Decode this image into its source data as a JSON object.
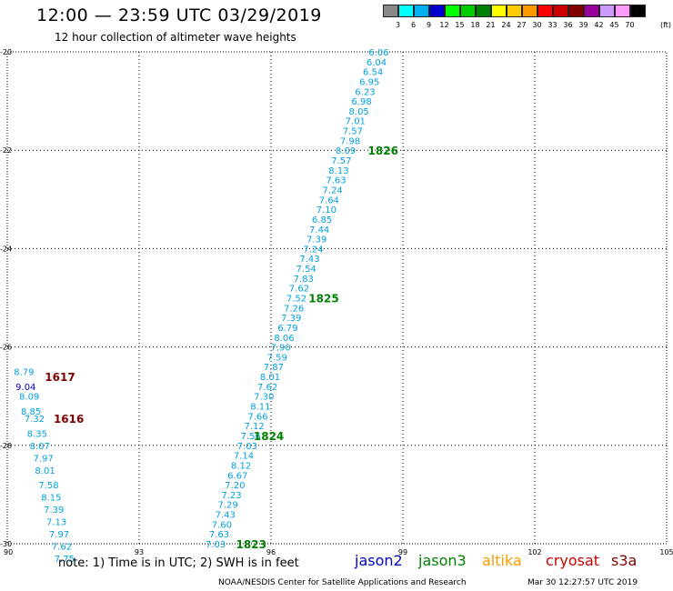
{
  "header": {
    "title": "12:00 — 23:59 UTC 03/29/2019",
    "subtitle": "12 hour collection of altimeter wave heights"
  },
  "scale": {
    "unit": "(ft)",
    "levels": [
      {
        "label": "3",
        "color": "#888888"
      },
      {
        "label": "6",
        "color": "#00ffff"
      },
      {
        "label": "9",
        "color": "#00b0f0"
      },
      {
        "label": "12",
        "color": "#0000cc"
      },
      {
        "label": "15",
        "color": "#00ff00"
      },
      {
        "label": "18",
        "color": "#00cc00"
      },
      {
        "label": "21",
        "color": "#008000"
      },
      {
        "label": "24",
        "color": "#ffff00"
      },
      {
        "label": "27",
        "color": "#ffcc00"
      },
      {
        "label": "30",
        "color": "#ff9900"
      },
      {
        "label": "33",
        "color": "#ff0000"
      },
      {
        "label": "36",
        "color": "#cc0000"
      },
      {
        "label": "39",
        "color": "#800000"
      },
      {
        "label": "42",
        "color": "#990099"
      },
      {
        "label": "45",
        "color": "#cc99ff"
      },
      {
        "label": "70",
        "color": "#ff99ff"
      },
      {
        "label": "",
        "color": "#000000"
      }
    ]
  },
  "map": {
    "lon_ticks": [
      "90",
      "93",
      "96",
      "99",
      "102",
      "105"
    ],
    "lat_ticks": [
      "-20",
      "-22",
      "-24",
      "-26",
      "-28",
      "-30"
    ],
    "track_a": [
      {
        "lat": -20.0,
        "lon": 98.45,
        "v": "6.06"
      },
      {
        "lat": -20.2,
        "lon": 98.4,
        "v": "6.04"
      },
      {
        "lat": -20.4,
        "lon": 98.32,
        "v": "6.54"
      },
      {
        "lat": -20.6,
        "lon": 98.24,
        "v": "6.95"
      },
      {
        "lat": -20.8,
        "lon": 98.14,
        "v": "6.23"
      },
      {
        "lat": -21.0,
        "lon": 98.06,
        "v": "6.98"
      },
      {
        "lat": -21.2,
        "lon": 98.0,
        "v": "8.05"
      },
      {
        "lat": -21.4,
        "lon": 97.92,
        "v": "7.01"
      },
      {
        "lat": -21.6,
        "lon": 97.86,
        "v": "7.57"
      },
      {
        "lat": -21.8,
        "lon": 97.8,
        "v": "7.98"
      },
      {
        "lat": -22.0,
        "lon": 97.7,
        "v": "8.09"
      },
      {
        "lat": -22.2,
        "lon": 97.6,
        "v": "7.57"
      },
      {
        "lat": -22.4,
        "lon": 97.54,
        "v": "8.13"
      },
      {
        "lat": -22.6,
        "lon": 97.48,
        "v": "7.63"
      },
      {
        "lat": -22.8,
        "lon": 97.4,
        "v": "7.24"
      },
      {
        "lat": -23.0,
        "lon": 97.32,
        "v": "7.64"
      },
      {
        "lat": -23.2,
        "lon": 97.26,
        "v": "7.10"
      },
      {
        "lat": -23.4,
        "lon": 97.16,
        "v": "6.85"
      },
      {
        "lat": -23.6,
        "lon": 97.1,
        "v": "7.44"
      },
      {
        "lat": -23.8,
        "lon": 97.04,
        "v": "7.39"
      },
      {
        "lat": -24.0,
        "lon": 96.96,
        "v": "7.24"
      },
      {
        "lat": -24.2,
        "lon": 96.88,
        "v": "7.43"
      },
      {
        "lat": -24.4,
        "lon": 96.8,
        "v": "7.54"
      },
      {
        "lat": -24.6,
        "lon": 96.74,
        "v": "7.83"
      },
      {
        "lat": -24.8,
        "lon": 96.64,
        "v": "7.62"
      },
      {
        "lat": -25.0,
        "lon": 96.58,
        "v": "7.52"
      },
      {
        "lat": -25.2,
        "lon": 96.52,
        "v": "7.26"
      },
      {
        "lat": -25.4,
        "lon": 96.46,
        "v": "7.39"
      },
      {
        "lat": -25.6,
        "lon": 96.38,
        "v": "6.79"
      },
      {
        "lat": -25.8,
        "lon": 96.3,
        "v": "8.06"
      },
      {
        "lat": -26.0,
        "lon": 96.22,
        "v": "7.90"
      },
      {
        "lat": -26.2,
        "lon": 96.14,
        "v": "7.59"
      },
      {
        "lat": -26.4,
        "lon": 96.06,
        "v": "7.87"
      },
      {
        "lat": -26.6,
        "lon": 95.98,
        "v": "8.01"
      },
      {
        "lat": -26.8,
        "lon": 95.92,
        "v": "7.62"
      },
      {
        "lat": -27.0,
        "lon": 95.84,
        "v": "7.30"
      },
      {
        "lat": -27.2,
        "lon": 95.76,
        "v": "8.11"
      },
      {
        "lat": -27.4,
        "lon": 95.7,
        "v": "7.66"
      },
      {
        "lat": -27.6,
        "lon": 95.62,
        "v": "7.12"
      },
      {
        "lat": -27.8,
        "lon": 95.54,
        "v": "7.56"
      },
      {
        "lat": -28.0,
        "lon": 95.46,
        "v": "7.03"
      },
      {
        "lat": -28.2,
        "lon": 95.38,
        "v": "7.14"
      },
      {
        "lat": -28.4,
        "lon": 95.32,
        "v": "8.12"
      },
      {
        "lat": -28.6,
        "lon": 95.24,
        "v": "6.67"
      },
      {
        "lat": -28.8,
        "lon": 95.18,
        "v": "7.20"
      },
      {
        "lat": -29.0,
        "lon": 95.1,
        "v": "7.23"
      },
      {
        "lat": -29.2,
        "lon": 95.02,
        "v": "7.29"
      },
      {
        "lat": -29.4,
        "lon": 94.96,
        "v": "7.43"
      },
      {
        "lat": -29.6,
        "lon": 94.88,
        "v": "7.60"
      },
      {
        "lat": -29.8,
        "lon": 94.82,
        "v": "7.63"
      },
      {
        "lat": -30.0,
        "lon": 94.74,
        "v": "7.03"
      }
    ],
    "track_b": [
      {
        "lat": -26.5,
        "lon": 90.38,
        "v": "8.79",
        "c": "#00a0e0"
      },
      {
        "lat": -26.8,
        "lon": 90.42,
        "v": "9.04",
        "c": "#0000cc"
      },
      {
        "lat": -27.0,
        "lon": 90.5,
        "v": "8.09",
        "c": "#00a0e0"
      },
      {
        "lat": -27.3,
        "lon": 90.54,
        "v": "8.85",
        "c": "#00a0e0"
      },
      {
        "lat": -27.45,
        "lon": 90.62,
        "v": "7.32",
        "c": "#00a0e0"
      },
      {
        "lat": -27.75,
        "lon": 90.68,
        "v": "8.35",
        "c": "#00a0e0"
      },
      {
        "lat": -28.0,
        "lon": 90.74,
        "v": "8.07",
        "c": "#00a0e0"
      },
      {
        "lat": -28.25,
        "lon": 90.82,
        "v": "7.97",
        "c": "#00a0e0"
      },
      {
        "lat": -28.5,
        "lon": 90.86,
        "v": "8.01",
        "c": "#00a0e0"
      },
      {
        "lat": -28.8,
        "lon": 90.94,
        "v": "7.58",
        "c": "#00a0e0"
      },
      {
        "lat": -29.05,
        "lon": 91.0,
        "v": "8.15",
        "c": "#00a0e0"
      },
      {
        "lat": -29.3,
        "lon": 91.06,
        "v": "7.39",
        "c": "#00a0e0"
      },
      {
        "lat": -29.55,
        "lon": 91.12,
        "v": "7.13",
        "c": "#00a0e0"
      },
      {
        "lat": -29.8,
        "lon": 91.18,
        "v": "7.97",
        "c": "#00a0e0"
      },
      {
        "lat": -30.05,
        "lon": 91.24,
        "v": "7.62",
        "c": "#00a0e0"
      },
      {
        "lat": -30.3,
        "lon": 91.3,
        "v": "7.75",
        "c": "#00a0e0"
      }
    ],
    "time_labels": [
      {
        "lat": -22.0,
        "lon": 98.55,
        "text": "1826",
        "color": "#008000"
      },
      {
        "lat": -25.0,
        "lon": 97.2,
        "text": "1825",
        "color": "#008000"
      },
      {
        "lat": -27.8,
        "lon": 95.95,
        "text": "1824",
        "color": "#008000"
      },
      {
        "lat": -30.0,
        "lon": 95.55,
        "text": "1823",
        "color": "#008000"
      },
      {
        "lat": -26.6,
        "lon": 91.2,
        "text": "1617",
        "color": "#800000"
      },
      {
        "lat": -27.45,
        "lon": 91.4,
        "text": "1616",
        "color": "#800000"
      }
    ]
  },
  "footer": {
    "note": "note: 1) Time is in UTC; 2) SWH is in feet",
    "satellites": [
      {
        "name": "jason2",
        "color": "#0000cc"
      },
      {
        "name": "jason3",
        "color": "#008000"
      },
      {
        "name": "altika",
        "color": "#ff9900"
      },
      {
        "name": "cryosat",
        "color": "#cc0000"
      },
      {
        "name": "s3a",
        "color": "#800000"
      }
    ],
    "credit": "NOAA/NESDIS Center for Satellite Applications and Research",
    "timestamp": "Mar 30 12:27:57 UTC 2019"
  }
}
